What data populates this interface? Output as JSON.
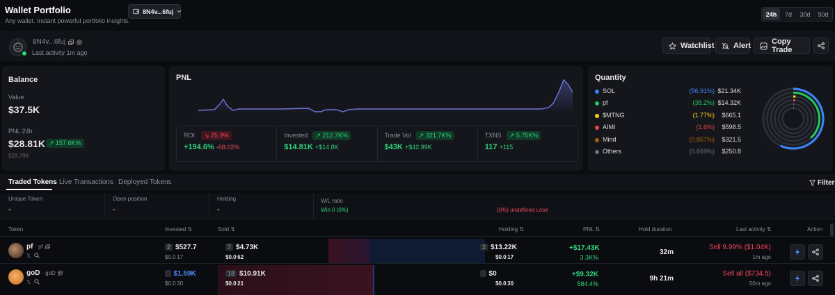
{
  "header": {
    "title": "Wallet Portfolio",
    "subtitle": "Any wallet. Instant powerful portfolio insights.",
    "wallet_select": "8N4v...6fuj",
    "timeframes": [
      "24h",
      "7d",
      "30d",
      "90d"
    ],
    "active_timeframe": "24h"
  },
  "wallet": {
    "address": "8N4v...6fuj",
    "last_activity": "Last activity 1m ago",
    "watchlist_label": "Watchlist",
    "alert_label": "Alert",
    "copy_trade_label": "Copy Trade"
  },
  "balance": {
    "title": "Balance",
    "value_label": "Value",
    "value": "$37.5K",
    "pnl_label": "PNL 24h",
    "pnl_value": "$28.81K",
    "pnl_change": "157.6K%",
    "pnl_sub": "$28.79K"
  },
  "pnl": {
    "title": "PNL",
    "stats": [
      {
        "label": "ROI",
        "badge": "25.9%",
        "badge_dir": "down",
        "value": "+194.6%",
        "delta": "-68.02%"
      },
      {
        "label": "Invested",
        "badge": "212.7K%",
        "badge_dir": "up",
        "value": "$14.81K",
        "delta": "+$14.8K"
      },
      {
        "label": "Trade Vol",
        "badge": "321.7K%",
        "badge_dir": "up",
        "value": "$43K",
        "delta": "+$42.99K"
      },
      {
        "label": "TXNS",
        "badge": "5.75K%",
        "badge_dir": "up",
        "value": "117",
        "delta": "+115"
      }
    ]
  },
  "quantity": {
    "title": "Quantity",
    "items": [
      {
        "name": "SOL",
        "pct": "(56.91%)",
        "value": "$21.34K",
        "color": "#3b82f6"
      },
      {
        "name": "pf",
        "pct": "(38.2%)",
        "value": "$14.32K",
        "color": "#22c55e"
      },
      {
        "name": "$MTNG",
        "pct": "(1.77%)",
        "value": "$665.1",
        "color": "#facc15"
      },
      {
        "name": "AIMI",
        "pct": "(1.6%)",
        "value": "$598.5",
        "color": "#ef4444"
      },
      {
        "name": "Mind",
        "pct": "(0.857%)",
        "value": "$321.5",
        "color": "#a16207"
      },
      {
        "name": "Others",
        "pct": "(0.669%)",
        "value": "$250.8",
        "color": "#6b7280"
      }
    ]
  },
  "tabs": {
    "items": [
      "Traded Tokens",
      "Live Transactions",
      "Deployed Tokens"
    ],
    "active": "Traded Tokens",
    "filter_label": "Filter"
  },
  "summary": {
    "unique_label": "Unique Token",
    "unique_value": "-",
    "open_label": "Open position",
    "open_value": "-",
    "holding_label": "Holding",
    "holding_value": "-",
    "wl_label": "W/L ratio",
    "win_text": "Win 0 (0%)",
    "lose_text": "(0%) undefined Lose"
  },
  "table": {
    "columns": [
      "Token",
      "Invested",
      "Sold",
      "Holding",
      "PNL",
      "Hold duration",
      "Last activity",
      "Action"
    ],
    "rows": [
      {
        "name": "pf",
        "symbol": "· pf",
        "invested_count": "2",
        "invested": "$527.7",
        "invested_price": "$0.0 17",
        "sold_count": "7",
        "sold": "$4.73K",
        "sold_price": "$0.0 62",
        "holding_count": "2",
        "holding": "$13.22K",
        "holding_price": "$0.0 17",
        "pnl": "+$17.43K",
        "pnl_pct": "3.3K%",
        "duration": "32m",
        "activity": "Sell 9.99% ($1.04K)",
        "activity_time": "1m ago"
      },
      {
        "name": "goD",
        "symbol": "· goD",
        "invested_count": "",
        "invested": "$1.59K",
        "invested_price": "$0.0 30",
        "sold_count": "18",
        "sold": "$10.91K",
        "sold_price": "$0.0 21",
        "holding_count": "",
        "holding": "$0",
        "holding_price": "$0.0 30",
        "pnl": "+$9.32K",
        "pnl_pct": "584.4%",
        "duration": "9h 21m",
        "activity": "Sell all ($734.5)",
        "activity_time": "50m ago"
      }
    ]
  }
}
